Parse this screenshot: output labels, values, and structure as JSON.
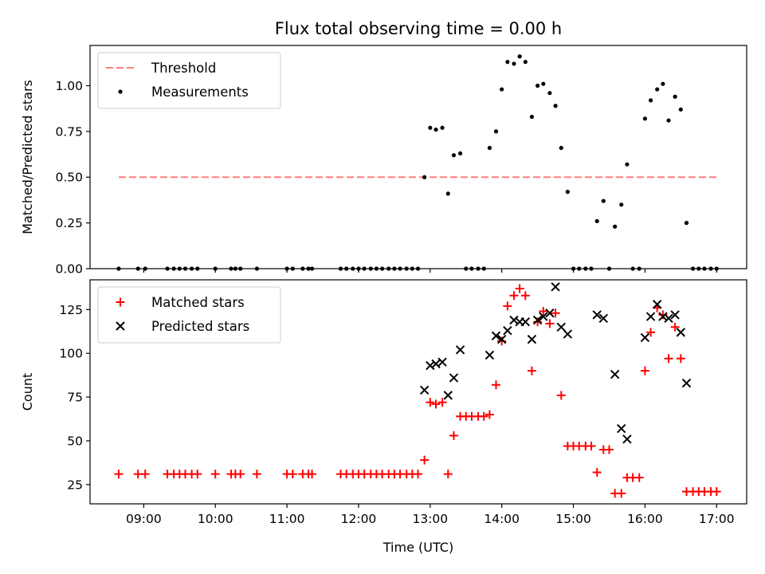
{
  "chart_data": {
    "type": "scatter",
    "title": "Flux total observing time = 0.00 h",
    "xlabel": "Time (UTC)",
    "x_unit": "hours UTC",
    "x_range": [
      8.25,
      17.42
    ],
    "x_ticks": [
      9,
      10,
      11,
      12,
      13,
      14,
      15,
      16,
      17
    ],
    "x_tick_labels": [
      "09:00",
      "10:00",
      "11:00",
      "12:00",
      "13:00",
      "14:00",
      "15:00",
      "16:00",
      "17:00"
    ],
    "panels": [
      {
        "name": "ratio",
        "ylabel": "Matched/Predicted stars",
        "ylim": [
          0,
          1.22
        ],
        "y_ticks": [
          0,
          0.25,
          0.5,
          0.75,
          1.0
        ],
        "y_tick_labels": [
          "0.00",
          "0.25",
          "0.50",
          "0.75",
          "1.00"
        ],
        "legend_position": "top-left",
        "series": [
          {
            "name": "Threshold",
            "kind": "line",
            "style": "dashed",
            "color": "#ff7f7f",
            "x": [
              8.65,
              17.0
            ],
            "y": [
              0.5,
              0.5
            ]
          },
          {
            "name": "Measurements",
            "kind": "scatter",
            "marker": "dot",
            "color": "#000000",
            "points": [
              [
                8.65,
                0
              ],
              [
                8.92,
                0
              ],
              [
                9.02,
                0
              ],
              [
                9.33,
                0
              ],
              [
                9.42,
                0
              ],
              [
                9.5,
                0
              ],
              [
                9.58,
                0
              ],
              [
                9.67,
                0
              ],
              [
                9.75,
                0
              ],
              [
                10.0,
                0
              ],
              [
                10.22,
                0
              ],
              [
                10.28,
                0
              ],
              [
                10.35,
                0
              ],
              [
                10.58,
                0
              ],
              [
                11.0,
                0
              ],
              [
                11.08,
                0
              ],
              [
                11.22,
                0
              ],
              [
                11.3,
                0
              ],
              [
                11.35,
                0
              ],
              [
                11.75,
                0
              ],
              [
                11.83,
                0
              ],
              [
                11.92,
                0
              ],
              [
                12.0,
                0
              ],
              [
                12.08,
                0
              ],
              [
                12.17,
                0
              ],
              [
                12.25,
                0
              ],
              [
                12.33,
                0
              ],
              [
                12.42,
                0
              ],
              [
                12.5,
                0
              ],
              [
                12.58,
                0
              ],
              [
                12.67,
                0
              ],
              [
                12.75,
                0
              ],
              [
                12.83,
                0
              ],
              [
                12.92,
                0.5
              ],
              [
                13.0,
                0.77
              ],
              [
                13.08,
                0.76
              ],
              [
                13.17,
                0.77
              ],
              [
                13.25,
                0.41
              ],
              [
                13.33,
                0.62
              ],
              [
                13.42,
                0.63
              ],
              [
                13.5,
                0
              ],
              [
                13.58,
                0
              ],
              [
                13.67,
                0
              ],
              [
                13.75,
                0
              ],
              [
                13.83,
                0.66
              ],
              [
                13.92,
                0.75
              ],
              [
                14.0,
                0.98
              ],
              [
                14.08,
                1.13
              ],
              [
                14.17,
                1.12
              ],
              [
                14.25,
                1.16
              ],
              [
                14.33,
                1.13
              ],
              [
                14.42,
                0.83
              ],
              [
                14.5,
                1.0
              ],
              [
                14.58,
                1.01
              ],
              [
                14.67,
                0.96
              ],
              [
                14.75,
                0.89
              ],
              [
                14.83,
                0.66
              ],
              [
                14.92,
                0.42
              ],
              [
                15.0,
                0
              ],
              [
                15.08,
                0
              ],
              [
                15.17,
                0
              ],
              [
                15.25,
                0
              ],
              [
                15.33,
                0.26
              ],
              [
                15.42,
                0.37
              ],
              [
                15.5,
                0
              ],
              [
                15.58,
                0.23
              ],
              [
                15.67,
                0.35
              ],
              [
                15.75,
                0.57
              ],
              [
                15.83,
                0
              ],
              [
                15.92,
                0
              ],
              [
                16.0,
                0.82
              ],
              [
                16.08,
                0.92
              ],
              [
                16.17,
                0.98
              ],
              [
                16.25,
                1.01
              ],
              [
                16.33,
                0.81
              ],
              [
                16.42,
                0.94
              ],
              [
                16.5,
                0.87
              ],
              [
                16.58,
                0.25
              ],
              [
                16.67,
                0
              ],
              [
                16.75,
                0
              ],
              [
                16.83,
                0
              ],
              [
                16.92,
                0
              ],
              [
                17.0,
                0
              ]
            ]
          }
        ]
      },
      {
        "name": "counts",
        "ylabel": "Count",
        "ylim": [
          14,
          142
        ],
        "y_ticks": [
          25,
          50,
          75,
          100,
          125
        ],
        "y_tick_labels": [
          "25",
          "50",
          "75",
          "100",
          "125"
        ],
        "legend_position": "top-left",
        "series": [
          {
            "name": "Matched stars",
            "kind": "scatter",
            "marker": "plus",
            "color": "#ff0000",
            "points": [
              [
                8.65,
                31
              ],
              [
                8.92,
                31
              ],
              [
                9.02,
                31
              ],
              [
                9.33,
                31
              ],
              [
                9.42,
                31
              ],
              [
                9.5,
                31
              ],
              [
                9.58,
                31
              ],
              [
                9.67,
                31
              ],
              [
                9.75,
                31
              ],
              [
                10.0,
                31
              ],
              [
                10.22,
                31
              ],
              [
                10.28,
                31
              ],
              [
                10.35,
                31
              ],
              [
                10.58,
                31
              ],
              [
                11.0,
                31
              ],
              [
                11.08,
                31
              ],
              [
                11.22,
                31
              ],
              [
                11.3,
                31
              ],
              [
                11.35,
                31
              ],
              [
                11.75,
                31
              ],
              [
                11.83,
                31
              ],
              [
                11.92,
                31
              ],
              [
                12.0,
                31
              ],
              [
                12.08,
                31
              ],
              [
                12.17,
                31
              ],
              [
                12.25,
                31
              ],
              [
                12.33,
                31
              ],
              [
                12.42,
                31
              ],
              [
                12.5,
                31
              ],
              [
                12.58,
                31
              ],
              [
                12.67,
                31
              ],
              [
                12.75,
                31
              ],
              [
                12.83,
                31
              ],
              [
                12.92,
                39
              ],
              [
                13.0,
                72
              ],
              [
                13.08,
                71
              ],
              [
                13.17,
                72
              ],
              [
                13.25,
                31
              ],
              [
                13.33,
                53
              ],
              [
                13.42,
                64
              ],
              [
                13.5,
                64
              ],
              [
                13.58,
                64
              ],
              [
                13.67,
                64
              ],
              [
                13.75,
                64
              ],
              [
                13.83,
                65
              ],
              [
                13.92,
                82
              ],
              [
                14.0,
                107
              ],
              [
                14.08,
                127
              ],
              [
                14.17,
                133
              ],
              [
                14.25,
                137
              ],
              [
                14.33,
                133
              ],
              [
                14.42,
                90
              ],
              [
                14.5,
                118
              ],
              [
                14.58,
                124
              ],
              [
                14.67,
                117
              ],
              [
                14.75,
                123
              ],
              [
                14.83,
                76
              ],
              [
                14.92,
                47
              ],
              [
                15.0,
                47
              ],
              [
                15.08,
                47
              ],
              [
                15.17,
                47
              ],
              [
                15.25,
                47
              ],
              [
                15.33,
                32
              ],
              [
                15.42,
                45
              ],
              [
                15.5,
                45
              ],
              [
                15.58,
                20
              ],
              [
                15.67,
                20
              ],
              [
                15.75,
                29
              ],
              [
                15.83,
                29
              ],
              [
                15.92,
                29
              ],
              [
                16.0,
                90
              ],
              [
                16.08,
                112
              ],
              [
                16.17,
                126
              ],
              [
                16.25,
                122
              ],
              [
                16.33,
                97
              ],
              [
                16.42,
                115
              ],
              [
                16.5,
                97
              ],
              [
                16.58,
                21
              ],
              [
                16.67,
                21
              ],
              [
                16.75,
                21
              ],
              [
                16.83,
                21
              ],
              [
                16.92,
                21
              ],
              [
                17.0,
                21
              ]
            ]
          },
          {
            "name": "Predicted stars",
            "kind": "scatter",
            "marker": "x",
            "color": "#000000",
            "points": [
              [
                12.92,
                79
              ],
              [
                13.0,
                93
              ],
              [
                13.08,
                94
              ],
              [
                13.17,
                95
              ],
              [
                13.25,
                76
              ],
              [
                13.33,
                86
              ],
              [
                13.42,
                102
              ],
              [
                13.83,
                99
              ],
              [
                13.92,
                110
              ],
              [
                14.0,
                108
              ],
              [
                14.08,
                113
              ],
              [
                14.17,
                119
              ],
              [
                14.25,
                118
              ],
              [
                14.33,
                118
              ],
              [
                14.42,
                108
              ],
              [
                14.5,
                119
              ],
              [
                14.58,
                121
              ],
              [
                14.67,
                123
              ],
              [
                14.75,
                138
              ],
              [
                14.83,
                115
              ],
              [
                14.92,
                111
              ],
              [
                15.33,
                122
              ],
              [
                15.42,
                120
              ],
              [
                15.58,
                88
              ],
              [
                15.67,
                57
              ],
              [
                15.75,
                51
              ],
              [
                16.0,
                109
              ],
              [
                16.08,
                121
              ],
              [
                16.17,
                128
              ],
              [
                16.25,
                121
              ],
              [
                16.33,
                120
              ],
              [
                16.42,
                122
              ],
              [
                16.5,
                112
              ],
              [
                16.58,
                83
              ]
            ]
          }
        ]
      }
    ]
  }
}
